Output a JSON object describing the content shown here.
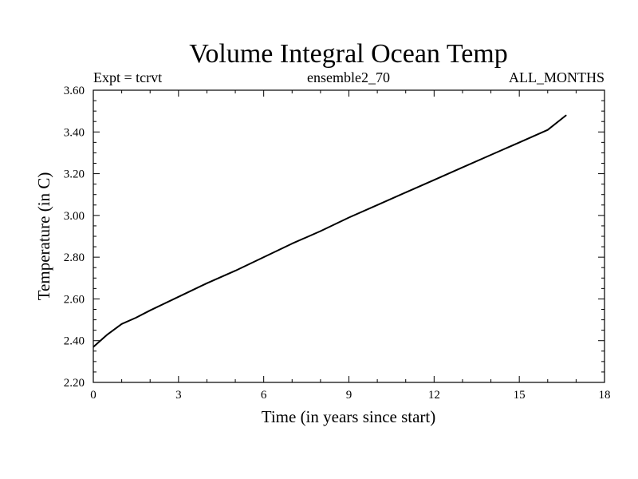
{
  "chart_data": {
    "type": "line",
    "title": "Volume Integral Ocean Temp",
    "subtitle_left": "Expt = tcrvt",
    "subtitle_center": "ensemble2_70",
    "subtitle_right": "ALL_MONTHS",
    "xlabel": "Time (in years since start)",
    "ylabel": "Temperature (in C)",
    "xlim": [
      0,
      18
    ],
    "ylim": [
      2.2,
      3.6
    ],
    "xticks": [
      0,
      3,
      6,
      9,
      12,
      15,
      18
    ],
    "xtick_labels": [
      "0",
      "3",
      "6",
      "9",
      "12",
      "15",
      "18"
    ],
    "yticks": [
      2.2,
      2.4,
      2.6,
      2.8,
      3.0,
      3.2,
      3.4,
      3.6
    ],
    "ytick_labels": [
      "2.20",
      "2.40",
      "2.60",
      "2.80",
      "3.00",
      "3.20",
      "3.40",
      "3.60"
    ],
    "grid": false,
    "series": [
      {
        "name": "ensemble2_70",
        "color": "#000000",
        "x": [
          0,
          0.25,
          0.5,
          1,
          1.5,
          2,
          3,
          4,
          5,
          6,
          7,
          8,
          9,
          10,
          11,
          12,
          13,
          14,
          15,
          16,
          16.65
        ],
        "y": [
          2.37,
          2.4,
          2.43,
          2.48,
          2.51,
          2.545,
          2.61,
          2.675,
          2.735,
          2.8,
          2.865,
          2.925,
          2.99,
          3.05,
          3.11,
          3.17,
          3.23,
          3.29,
          3.35,
          3.41,
          3.48
        ]
      }
    ]
  }
}
